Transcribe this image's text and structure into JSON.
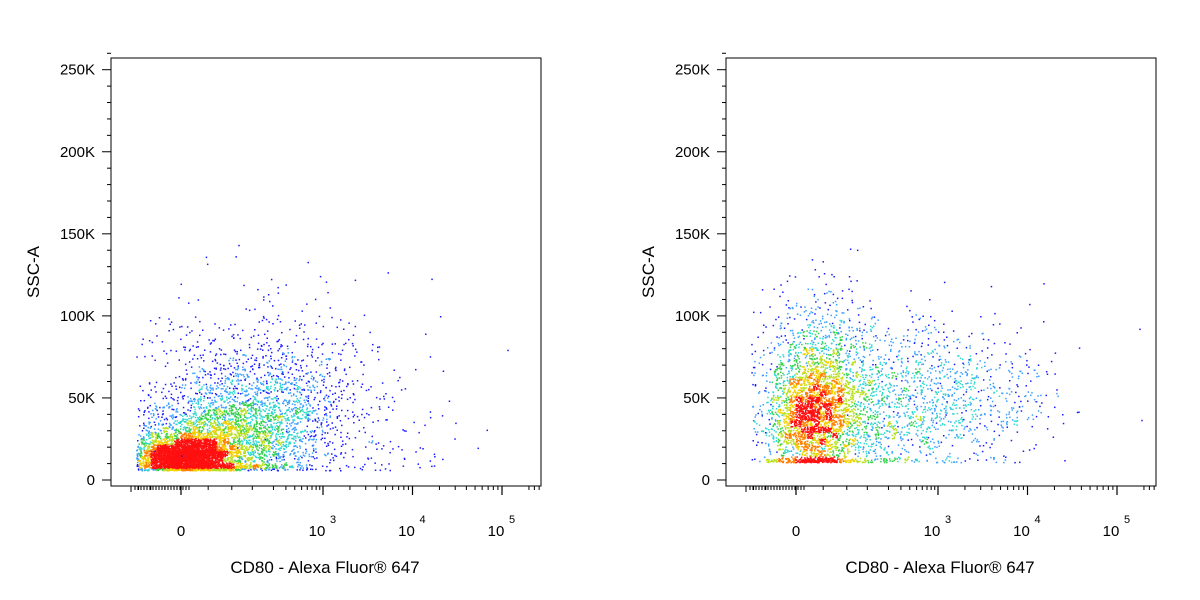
{
  "chart_data": [
    {
      "type": "scatter",
      "title": "",
      "xlabel": "CD80 - Alexa Fluor® 647",
      "ylabel": "SSC-A",
      "x_scale": "biexponential",
      "ylim": [
        0,
        262144
      ],
      "y_ticks": [
        {
          "value": 0,
          "label": "0"
        },
        {
          "value": 50000,
          "label": "50K"
        },
        {
          "value": 100000,
          "label": "100K"
        },
        {
          "value": 150000,
          "label": "150K"
        },
        {
          "value": 200000,
          "label": "200K"
        },
        {
          "value": 250000,
          "label": "250K"
        }
      ],
      "x_ticks": [
        {
          "value": 0,
          "base": "0",
          "exp": ""
        },
        {
          "value": 1000,
          "base": "10",
          "exp": "3"
        },
        {
          "value": 10000,
          "base": "10",
          "exp": "4"
        },
        {
          "value": 100000,
          "base": "10",
          "exp": "5"
        }
      ],
      "density_color": "pseudocolor (blue low → red high)",
      "series": [
        {
          "values": [
            [
              0,
              15000
            ],
            [
              -40,
              18000
            ],
            [
              60,
              20000
            ],
            [
              150,
              25000
            ],
            [
              300,
              30000
            ],
            [
              600,
              40000
            ],
            [
              1500,
              60000
            ],
            [
              3000,
              55000
            ],
            [
              12000,
              20000
            ],
            [
              30000,
              35000
            ]
          ]
        }
      ]
    },
    {
      "type": "scatter",
      "title": "",
      "xlabel": "CD80 - Alexa Fluor® 647",
      "ylabel": "SSC-A",
      "x_scale": "biexponential",
      "ylim": [
        0,
        262144
      ],
      "y_ticks": [
        {
          "value": 0,
          "label": "0"
        },
        {
          "value": 50000,
          "label": "50K"
        },
        {
          "value": 100000,
          "label": "100K"
        },
        {
          "value": 150000,
          "label": "150K"
        },
        {
          "value": 200000,
          "label": "200K"
        },
        {
          "value": 250000,
          "label": "250K"
        }
      ],
      "x_ticks": [
        {
          "value": 0,
          "base": "0",
          "exp": ""
        },
        {
          "value": 1000,
          "base": "10",
          "exp": "3"
        },
        {
          "value": 10000,
          "base": "10",
          "exp": "4"
        },
        {
          "value": 100000,
          "base": "10",
          "exp": "5"
        }
      ],
      "density_color": "pseudocolor (blue low → red high)",
      "series": [
        {
          "values": [
            [
              50,
              40000
            ],
            [
              100,
              35000
            ],
            [
              200,
              45000
            ],
            [
              400,
              50000
            ],
            [
              800,
              55000
            ],
            [
              1500,
              60000
            ],
            [
              3000,
              55000
            ],
            [
              8000,
              45000
            ],
            [
              15000,
              120000
            ],
            [
              20000,
              65000
            ]
          ]
        }
      ]
    }
  ]
}
